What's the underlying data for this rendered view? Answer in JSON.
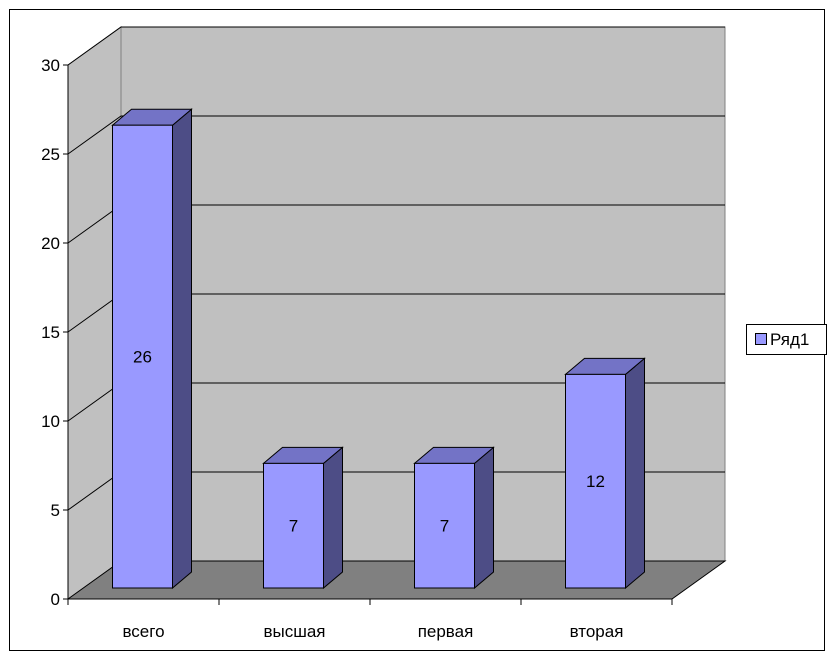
{
  "chart_data": {
    "type": "bar",
    "categories": [
      "всего",
      "высшая",
      "первая",
      "вторая"
    ],
    "series": [
      {
        "name": "Ряд1",
        "values": [
          26,
          7,
          7,
          12
        ]
      }
    ],
    "ylim": [
      0,
      30
    ],
    "yticks": [
      0,
      5,
      10,
      15,
      20,
      25,
      30
    ],
    "grid": true,
    "three_d": true,
    "legend_position": "right",
    "colors": {
      "bar_front": "#9999ff",
      "bar_top": "#7373c6",
      "bar_side": "#4d4d86",
      "back_wall": "#c0c0c0",
      "side_wall": "#c0c0c0",
      "floor": "#808080",
      "grid": "#000000"
    }
  }
}
